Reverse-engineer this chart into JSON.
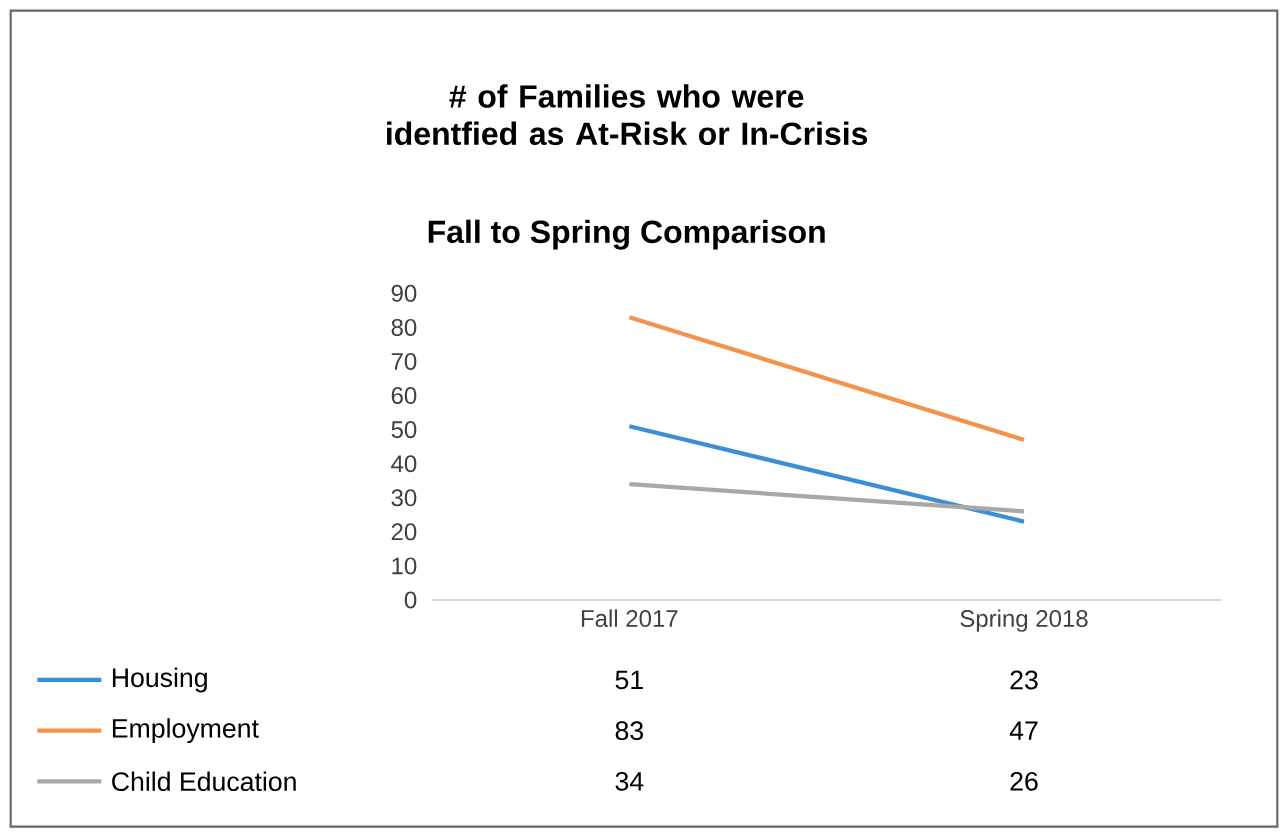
{
  "chart_data": {
    "type": "line",
    "title": "# of Families who were identfied as At-Risk or In-Crisis",
    "subtitle": "Fall to Spring Comparison",
    "categories": [
      "Fall 2017",
      "Spring 2018"
    ],
    "series": [
      {
        "name": "Housing",
        "color": "#3b8fd6",
        "values": [
          51,
          23
        ]
      },
      {
        "name": "Employment",
        "color": "#f5924c",
        "values": [
          83,
          47
        ]
      },
      {
        "name": "Child Education",
        "color": "#a8a8a8",
        "values": [
          34,
          26
        ]
      }
    ],
    "ylim": [
      0,
      90
    ],
    "yticks": [
      0,
      10,
      20,
      30,
      40,
      50,
      60,
      70,
      80,
      90
    ],
    "grid": false,
    "legend": "bottom",
    "data_labels": true,
    "marker": "none",
    "line_style": "solid"
  }
}
